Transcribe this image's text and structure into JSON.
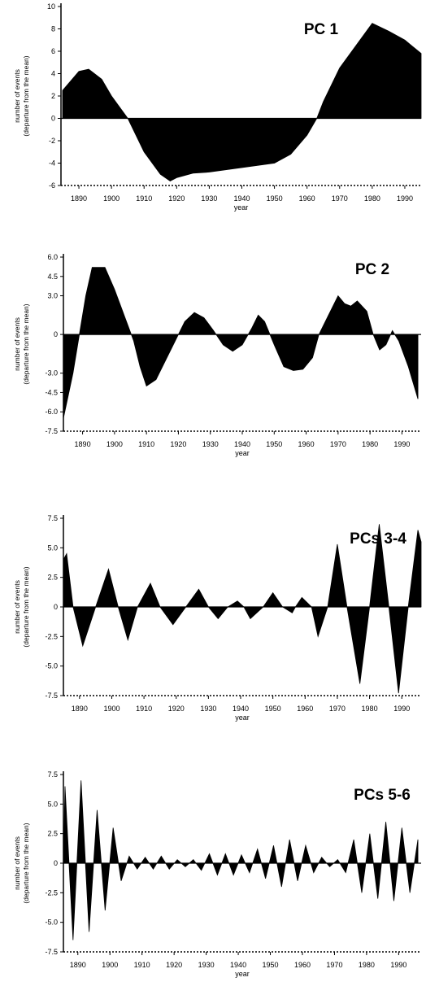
{
  "chart_data": [
    {
      "type": "area",
      "title": "PC 1",
      "xlabel": "year",
      "ylabel": [
        "number of events",
        "(departure from the mean)"
      ],
      "color": "#000000",
      "x": [
        1885,
        1890,
        1893,
        1897,
        1900,
        1905,
        1910,
        1915,
        1918,
        1920,
        1925,
        1930,
        1935,
        1940,
        1945,
        1950,
        1955,
        1960,
        1963,
        1965,
        1970,
        1975,
        1980,
        1985,
        1990,
        1995
      ],
      "values": [
        2.5,
        4.2,
        4.4,
        3.5,
        2,
        0,
        -3,
        -5,
        -5.6,
        -5.3,
        -4.9,
        -4.8,
        -4.6,
        -4.4,
        -4.2,
        -4,
        -3.2,
        -1.5,
        0,
        1.5,
        4.5,
        6.5,
        8.5,
        7.8,
        7,
        5.8
      ],
      "xlim": [
        1884.5,
        1995
      ],
      "ylim": [
        -6,
        10
      ],
      "xticks": [
        1890,
        1900,
        1910,
        1920,
        1930,
        1940,
        1950,
        1960,
        1970,
        1980,
        1990
      ],
      "yticks": [
        10,
        8,
        6,
        4,
        2,
        0,
        -2,
        -4,
        -6
      ]
    },
    {
      "type": "area",
      "title": "PC 2",
      "xlabel": "year",
      "ylabel": [
        "number of events",
        "(departure from the mean)"
      ],
      "color": "#000000",
      "x": [
        1884,
        1887,
        1889,
        1891,
        1893,
        1897,
        1900,
        1903,
        1906,
        1908,
        1910,
        1913,
        1916,
        1919,
        1922,
        1925,
        1928,
        1931,
        1934,
        1937,
        1940,
        1943,
        1945,
        1947,
        1950,
        1953,
        1956,
        1959,
        1962,
        1964,
        1967,
        1970,
        1972,
        1974,
        1976,
        1979,
        1981,
        1983,
        1985,
        1987,
        1989,
        1992,
        1995
      ],
      "values": [
        -6.5,
        -3,
        0,
        3,
        5.2,
        5.2,
        3.5,
        1.5,
        -0.5,
        -2.5,
        -4,
        -3.5,
        -2,
        -0.5,
        1,
        1.7,
        1.3,
        0.3,
        -0.8,
        -1.3,
        -0.8,
        0.5,
        1.5,
        1,
        -0.8,
        -2.5,
        -2.8,
        -2.7,
        -1.8,
        0,
        1.5,
        3,
        2.4,
        2.2,
        2.6,
        1.8,
        0,
        -1.2,
        -0.8,
        0.3,
        -0.5,
        -2.5,
        -5
      ],
      "xlim": [
        1884,
        1996
      ],
      "ylim": [
        -7.5,
        6
      ],
      "xticks": [
        1890,
        1900,
        1910,
        1920,
        1930,
        1940,
        1950,
        1960,
        1970,
        1980,
        1990
      ],
      "yticks": [
        {
          "value": 6,
          "label": "6.0"
        },
        {
          "value": 4.5,
          "label": "4.5"
        },
        {
          "value": 3,
          "label": "3.0"
        },
        0,
        {
          "value": -3,
          "label": "-3.0"
        },
        {
          "value": -4.5,
          "label": "-4.5"
        },
        {
          "value": -6,
          "label": "-6.0"
        },
        -7.5
      ]
    },
    {
      "type": "area",
      "title": "PCs 3-4",
      "xlabel": "year",
      "ylabel": [
        "number of events",
        "(departure from the mean)"
      ],
      "color": "#000000",
      "x": [
        1885,
        1886,
        1888,
        1891,
        1895,
        1899,
        1902,
        1905,
        1908,
        1912,
        1915,
        1919,
        1923,
        1927,
        1930,
        1933,
        1936,
        1939,
        1941,
        1943,
        1947,
        1950,
        1953,
        1956,
        1957,
        1959,
        1962,
        1964,
        1967,
        1970,
        1973,
        1977,
        1980,
        1983,
        1986,
        1989,
        1992,
        1995,
        1996
      ],
      "values": [
        4,
        4.5,
        0,
        -3.3,
        0,
        3.2,
        0,
        -2.8,
        0,
        2,
        0,
        -1.5,
        0,
        1.5,
        0,
        -1,
        0,
        0.5,
        0,
        -1,
        0,
        1.2,
        0,
        -0.5,
        0,
        0.8,
        0,
        -2.5,
        0,
        5.3,
        0,
        -6.5,
        0,
        7,
        0,
        -7.3,
        0,
        6.5,
        5.5
      ],
      "xlim": [
        1885,
        1996
      ],
      "ylim": [
        -7.5,
        7.5
      ],
      "xticks": [
        1890,
        1900,
        1910,
        1920,
        1930,
        1940,
        1950,
        1960,
        1970,
        1980,
        1990
      ],
      "yticks": [
        7.5,
        {
          "value": 5,
          "label": "5.0"
        },
        2.5,
        0,
        -2.5,
        {
          "value": -5,
          "label": "-5.0"
        },
        -7.5
      ]
    },
    {
      "type": "area",
      "title": "PCs 5-6",
      "xlabel": "year",
      "ylabel": [
        "number of events",
        "(departure from the mean)"
      ],
      "color": "#000000",
      "x": [
        1885.5,
        1886,
        1888.5,
        1891,
        1893.5,
        1896,
        1898.5,
        1901,
        1903.5,
        1906,
        1908.5,
        1911,
        1913.5,
        1916,
        1918.5,
        1921,
        1923.5,
        1926,
        1928.5,
        1931,
        1933.5,
        1936,
        1938.5,
        1941,
        1943.5,
        1946,
        1948.5,
        1951,
        1953.5,
        1956,
        1958.5,
        1961,
        1963.5,
        1966,
        1968.5,
        1971,
        1973.5,
        1976,
        1978.5,
        1981,
        1983.5,
        1986,
        1988.5,
        1991,
        1993.5,
        1996
      ],
      "values": [
        0,
        6.5,
        -6.5,
        7,
        -5.8,
        4.5,
        -4,
        3,
        -1.5,
        0.6,
        -0.5,
        0.5,
        -0.5,
        0.6,
        -0.5,
        0.3,
        -0.3,
        0.3,
        -0.6,
        0.8,
        -1,
        0.8,
        -1,
        0.7,
        -0.8,
        1.2,
        -1.3,
        1.5,
        -2,
        2,
        -1.5,
        1.5,
        -0.8,
        0.5,
        -0.3,
        0.3,
        -0.8,
        2,
        -2.5,
        2.5,
        -3,
        3.5,
        -3.2,
        3,
        -2.5,
        2
      ],
      "xlim": [
        1885.5,
        1997
      ],
      "ylim": [
        -7.5,
        7.5
      ],
      "xticks": [
        1890,
        1900,
        1910,
        1920,
        1930,
        1940,
        1950,
        1960,
        1970,
        1980,
        1990
      ],
      "yticks": [
        7.5,
        {
          "value": 5,
          "label": "5.0"
        },
        2.5,
        0,
        -2.5,
        {
          "value": -5,
          "label": "-5.0"
        },
        -7.5
      ]
    }
  ]
}
